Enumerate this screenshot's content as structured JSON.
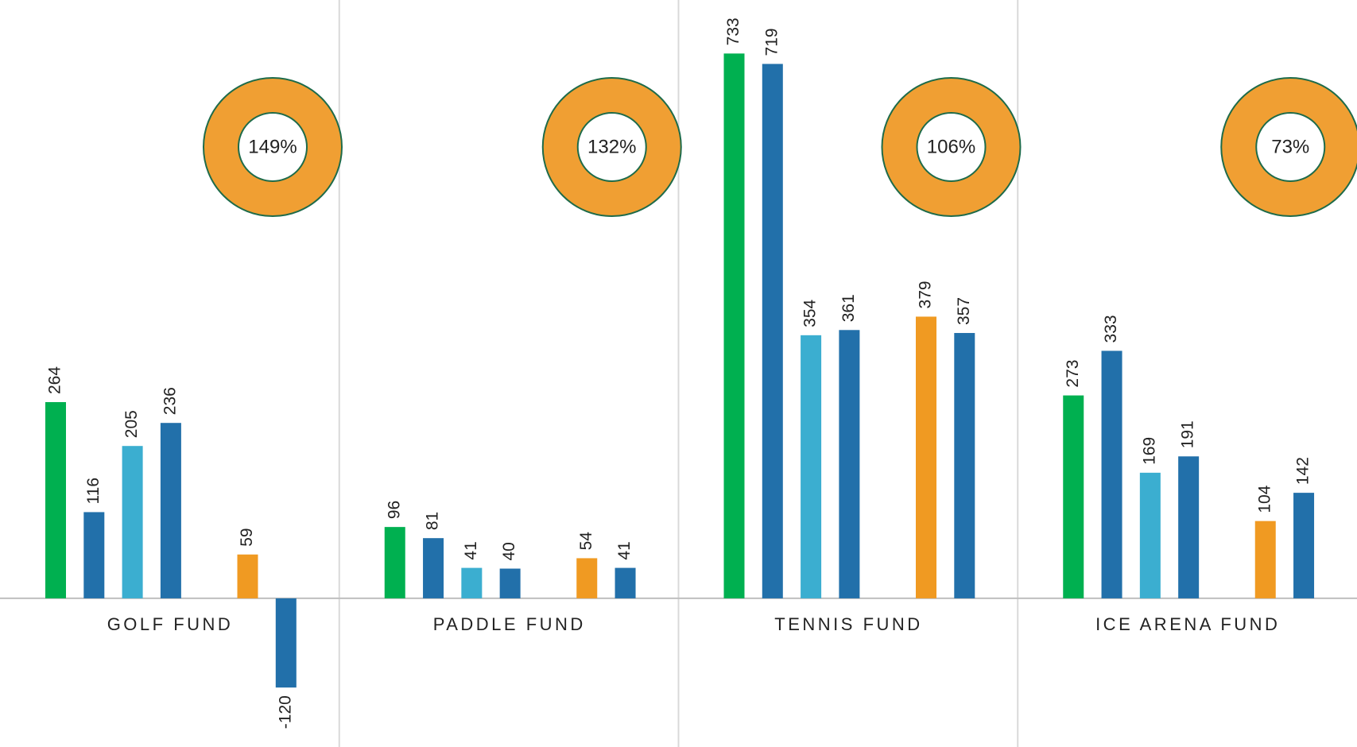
{
  "chart_data": {
    "type": "bar",
    "ylim": [
      -200,
      805
    ],
    "panels": [
      {
        "name": "GOLF FUND",
        "values": [
          264,
          116,
          205,
          236,
          59,
          -120
        ],
        "colors": [
          "#00b050",
          "#2270aa",
          "#3baed0",
          "#2270aa",
          "#f09a22",
          "#2270aa"
        ],
        "gauge_value": 149,
        "gauge_label": "149%"
      },
      {
        "name": "PADDLE FUND",
        "values": [
          96,
          81,
          41,
          40,
          54,
          41
        ],
        "colors": [
          "#00b050",
          "#2270aa",
          "#3baed0",
          "#2270aa",
          "#f09a22",
          "#2270aa"
        ],
        "gauge_value": 132,
        "gauge_label": "132%"
      },
      {
        "name": "TENNIS FUND",
        "values": [
          733,
          719,
          354,
          361,
          379,
          357
        ],
        "colors": [
          "#00b050",
          "#2270aa",
          "#3baed0",
          "#2270aa",
          "#f09a22",
          "#2270aa"
        ],
        "gauge_value": 106,
        "gauge_label": "106%"
      },
      {
        "name": "ICE ARENA FUND",
        "values": [
          273,
          333,
          169,
          191,
          104,
          142
        ],
        "colors": [
          "#00b050",
          "#2270aa",
          "#3baed0",
          "#2270aa",
          "#f09a22",
          "#2270aa"
        ],
        "gauge_value": 73,
        "gauge_label": "73%"
      }
    ]
  }
}
